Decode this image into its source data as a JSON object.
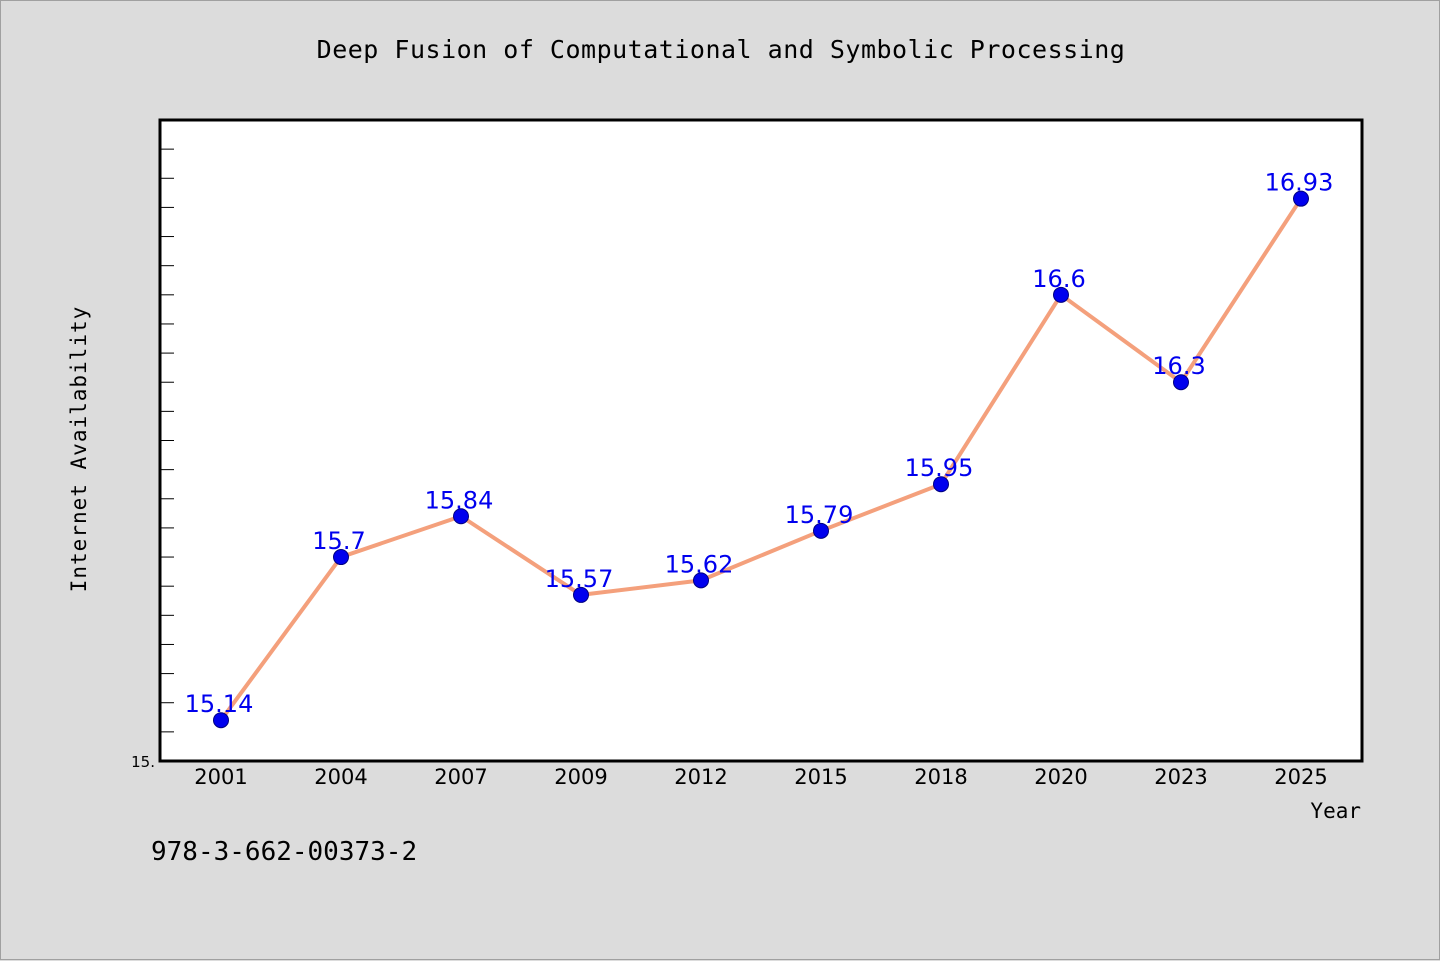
{
  "chart_data": {
    "type": "line",
    "title": "Deep Fusion of Computational and Symbolic Processing",
    "xlabel": "Year",
    "ylabel": "Internet Availability",
    "categories": [
      "2001",
      "2004",
      "2007",
      "2009",
      "2012",
      "2015",
      "2018",
      "2020",
      "2023",
      "2025"
    ],
    "series": [
      {
        "values": [
          15.14,
          15.7,
          15.84,
          15.57,
          15.62,
          15.79,
          15.95,
          16.6,
          16.3,
          16.93
        ]
      }
    ],
    "ylim": [
      15.0,
      17.2
    ],
    "ytick_label": "15.",
    "grid": false,
    "line_color": "#f4a07c",
    "marker_color": "#0000ee",
    "label_color": "#0000ee"
  },
  "footer_code": "978-3-662-00373-2"
}
